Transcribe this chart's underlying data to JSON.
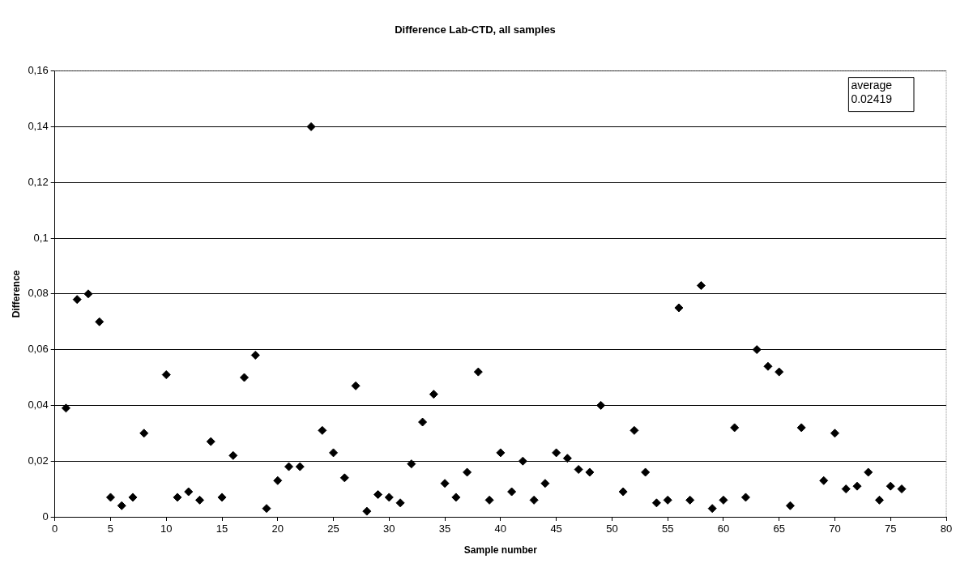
{
  "chart_data": {
    "type": "scatter",
    "title": "Difference Lab-CTD, all samples",
    "xlabel": "Sample number",
    "ylabel": "Difference",
    "annotations": [
      "average\n0.02419"
    ],
    "series": [
      {
        "color": "#000000",
        "x": [
          1,
          2,
          3,
          4,
          5,
          6,
          7,
          8,
          10,
          11,
          12,
          13,
          14,
          15,
          16,
          17,
          18,
          19,
          20,
          21,
          22,
          23,
          24,
          25,
          26,
          27,
          28,
          29,
          30,
          31,
          32,
          33,
          34,
          35,
          36,
          37,
          38,
          39,
          40,
          41,
          42,
          43,
          44,
          45,
          46,
          47,
          48,
          49,
          51,
          52,
          53,
          54,
          55,
          56,
          57,
          58,
          59,
          60,
          61,
          62,
          63,
          64,
          65,
          66,
          67,
          69,
          70,
          71,
          72,
          73,
          74,
          75,
          76
        ],
        "values": [
          0.039,
          0.078,
          0.08,
          0.07,
          0.007,
          0.004,
          0.007,
          0.03,
          0.051,
          0.007,
          0.009,
          0.006,
          0.027,
          0.007,
          0.022,
          0.05,
          0.058,
          0.003,
          0.013,
          0.018,
          0.018,
          0.14,
          0.031,
          0.023,
          0.014,
          0.047,
          0.002,
          0.008,
          0.007,
          0.005,
          0.019,
          0.034,
          0.044,
          0.012,
          0.007,
          0.016,
          0.052,
          0.006,
          0.023,
          0.009,
          0.02,
          0.006,
          0.012,
          0.023,
          0.021,
          0.017,
          0.016,
          0.04,
          0.009,
          0.031,
          0.016,
          0.005,
          0.006,
          0.075,
          0.006,
          0.083,
          0.003,
          0.006,
          0.032,
          0.007,
          0.06,
          0.054,
          0.052,
          0.004,
          0.032,
          0.013,
          0.03,
          0.01,
          0.011,
          0.016,
          0.006,
          0.011,
          0.01
        ]
      }
    ],
    "xlim": [
      0,
      80
    ],
    "xticks": [
      0,
      5,
      10,
      15,
      20,
      25,
      30,
      35,
      40,
      45,
      50,
      55,
      60,
      65,
      70,
      75,
      80
    ],
    "ylim": [
      0,
      0.16
    ],
    "yticks": [
      0,
      {
        "value": 0.02,
        "label": "0,02"
      },
      {
        "value": 0.04,
        "label": "0,04"
      },
      {
        "value": 0.06,
        "label": "0,06"
      },
      {
        "value": 0.08,
        "label": "0,08"
      },
      {
        "value": 0.1,
        "label": "0,1"
      },
      {
        "value": 0.12,
        "label": "0,12"
      },
      {
        "value": 0.14,
        "label": "0,14"
      },
      {
        "value": 0.16,
        "label": "0,16"
      }
    ],
    "grid": "y",
    "legend": false,
    "marker": "diamond"
  }
}
